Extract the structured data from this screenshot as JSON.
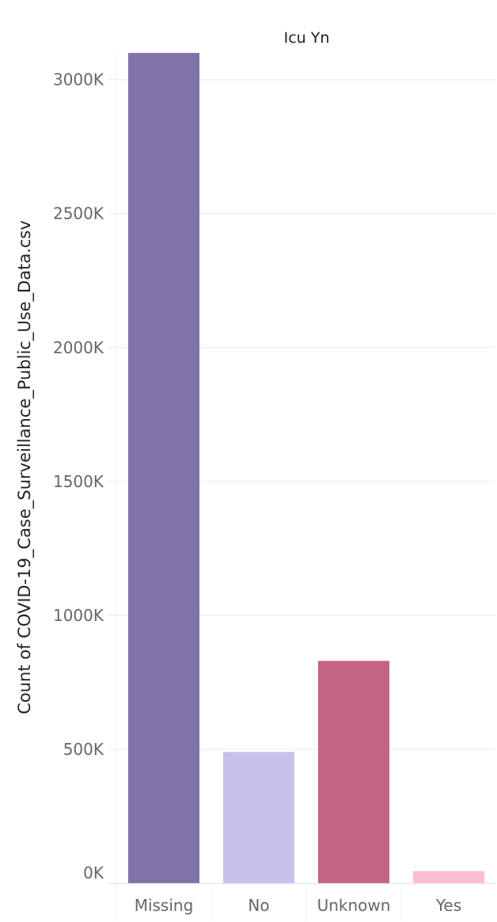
{
  "chart_data": {
    "type": "bar",
    "title": "Icu Yn",
    "ylabel": "Count of COVID-19_Case_Surveillance_Public_Use_Data.csv",
    "xlabel": "",
    "categories": [
      "Missing",
      "No",
      "Unknown",
      "Yes"
    ],
    "values": [
      3100000,
      490000,
      830000,
      45000
    ],
    "colors": [
      "#8073A8",
      "#C7C1EE",
      "#C46384",
      "#FCBCD1"
    ],
    "ylim": [
      0,
      3200000
    ],
    "yticks": [
      0,
      500000,
      1000000,
      1500000,
      2000000,
      2500000,
      3000000
    ],
    "ytick_labels": [
      "0K",
      "500K",
      "1000K",
      "1500K",
      "2000K",
      "2500K",
      "3000K"
    ],
    "grid": true,
    "legend": "none"
  }
}
